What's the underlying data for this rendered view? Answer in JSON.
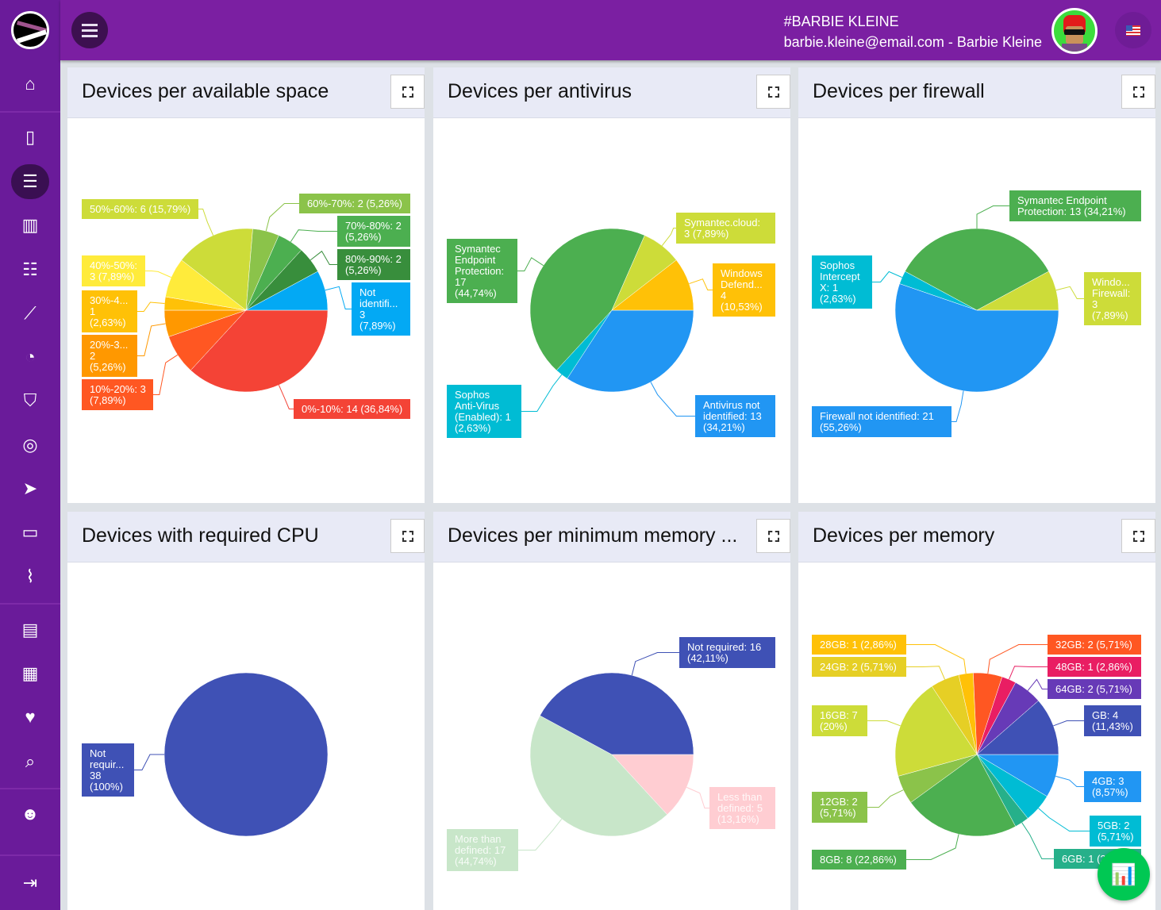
{
  "header": {
    "user_handle": "#BARBIE KLEINE",
    "user_line": "barbie.kleine@email.com - Barbie Kleine",
    "language": "English (US)"
  },
  "sidebar": {
    "items": [
      "home-icon",
      "devices-icon",
      "checklist-icon",
      "map-icon",
      "list-icon",
      "chart-line-icon",
      "dashboard-icon",
      "shield-user-icon",
      "fingerprint-icon",
      "send-icon",
      "monitor-icon",
      "cable-icon",
      "id-card-icon",
      "clipboard-icon",
      "heartbeat-icon",
      "search-hat-icon",
      "group-icon",
      "logout-icon"
    ],
    "active": 2
  },
  "colors": {
    "accent": "#7b1fa2",
    "sidebar": "#6a1b9a",
    "fab": "#00c853"
  },
  "chart_data": [
    {
      "type": "pie",
      "title": "Devices per available space",
      "categories": [
        "0%-10%",
        "10%-20%",
        "20%-30%",
        "30%-40%",
        "40%-50%",
        "50%-60%",
        "60%-70%",
        "70%-80%",
        "80%-90%",
        "Not identified"
      ],
      "values": [
        14,
        3,
        2,
        1,
        3,
        6,
        2,
        2,
        2,
        3
      ],
      "colors": [
        "#f44336",
        "#ff5722",
        "#ff9800",
        "#ffc107",
        "#ffeb3b",
        "#cddc39",
        "#8bc34a",
        "#4caf50",
        "#388e3c",
        "#03a9f4"
      ],
      "labels": [
        "0%-10%: 14 (36,84%)",
        "10%-20%: 3\n(7,89%)",
        "20%-3...\n2\n(5,26%)",
        "30%-4...\n1\n(2,63%)",
        "40%-50%:\n3 (7,89%)",
        "50%-60%: 6 (15,79%)",
        "60%-70%: 2 (5,26%)",
        "70%-80%: 2\n(5,26%)",
        "80%-90%: 2\n(5,26%)",
        "Not\nidentifi...\n3\n(7,89%)"
      ]
    },
    {
      "type": "pie",
      "title": "Devices per antivirus",
      "categories": [
        "Antivirus not identified",
        "Sophos Anti-Virus (Enabled)",
        "Symantec Endpoint Protection",
        "Symantec.cloud",
        "Windows Defender"
      ],
      "values": [
        13,
        1,
        17,
        3,
        4
      ],
      "colors": [
        "#2196f3",
        "#00bcd4",
        "#4caf50",
        "#cddc39",
        "#ffc107"
      ],
      "labels": [
        "Antivirus not\nidentified: 13\n(34,21%)",
        "Sophos\nAnti-Virus\n(Enabled): 1\n(2,63%)",
        "Symantec\nEndpoint\nProtection:\n17\n(44,74%)",
        "Symantec.cloud:\n3 (7,89%)",
        "Windows\nDefend...\n4\n(10,53%)"
      ]
    },
    {
      "type": "pie",
      "title": "Devices per firewall",
      "categories": [
        "Firewall not identified",
        "Sophos Intercept X",
        "Symantec Endpoint Protection",
        "Windows Firewall"
      ],
      "values": [
        21,
        1,
        13,
        3
      ],
      "colors": [
        "#2196f3",
        "#00bcd4",
        "#4caf50",
        "#cddc39"
      ],
      "labels": [
        "Firewall not identified: 21\n(55,26%)",
        "Sophos\nIntercept\nX: 1\n(2,63%)",
        "Symantec Endpoint\nProtection: 13 (34,21%)",
        "Windo...\nFirewall:\n3\n(7,89%)"
      ]
    },
    {
      "type": "pie",
      "title": "Devices with required CPU",
      "categories": [
        "Not required"
      ],
      "values": [
        38
      ],
      "colors": [
        "#3f51b5"
      ],
      "labels": [
        "Not\nrequir...\n38\n(100%)"
      ]
    },
    {
      "type": "pie",
      "title": "Devices per minimum memory ...",
      "categories": [
        "Less than defined",
        "More than defined",
        "Not required"
      ],
      "values": [
        5,
        17,
        16
      ],
      "colors": [
        "#ffcdd2",
        "#c8e6c9",
        "#3f51b5"
      ],
      "labels": [
        "Less than\ndefined: 5\n(13,16%)",
        "More than\ndefined: 17\n(44,74%)",
        "Not required: 16\n(42,11%)"
      ]
    },
    {
      "type": "pie",
      "title": "Devices per memory",
      "categories": [
        "4GB",
        "5GB",
        "6GB",
        "8GB",
        "12GB",
        "16GB",
        "24GB",
        "28GB",
        "32GB",
        "48GB",
        "64GB",
        "GB"
      ],
      "values": [
        3,
        2,
        1,
        8,
        2,
        7,
        2,
        1,
        2,
        1,
        2,
        4
      ],
      "colors": [
        "#2196f3",
        "#00bcd4",
        "#26b08a",
        "#4caf50",
        "#8bc34a",
        "#cddc39",
        "#e6cf25",
        "#ffc107",
        "#ff5722",
        "#e91e63",
        "#673ab7",
        "#3f51b5"
      ],
      "labels": [
        "4GB: 3\n(8,57%)",
        "5GB: 2\n(5,71%)",
        "6GB: 1 (2,86%)",
        "8GB: 8 (22,86%)",
        "12GB: 2\n(5,71%)",
        "16GB: 7\n(20%)",
        "24GB: 2 (5,71%)",
        "28GB: 1 (2,86%)",
        "32GB: 2 (5,71%)",
        "48GB: 1 (2,86%)",
        "64GB: 2 (5,71%)",
        "GB: 4\n(11,43%)"
      ]
    }
  ]
}
